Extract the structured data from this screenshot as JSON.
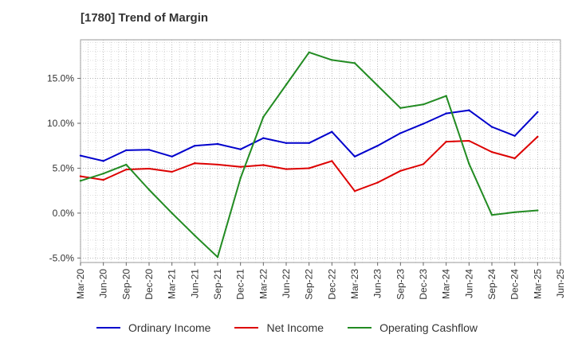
{
  "chart_data": {
    "type": "line",
    "title": "[1780]  Trend of Margin",
    "x": [
      "Mar-20",
      "Jun-20",
      "Sep-20",
      "Dec-20",
      "Mar-21",
      "Jun-21",
      "Sep-21",
      "Dec-21",
      "Mar-22",
      "Jun-22",
      "Sep-22",
      "Dec-22",
      "Mar-23",
      "Jun-23",
      "Sep-23",
      "Dec-23",
      "Mar-24",
      "Jun-24",
      "Sep-24",
      "Dec-24",
      "Mar-25"
    ],
    "x_tick_labels": [
      "Mar-20",
      "Jun-20",
      "Sep-20",
      "Dec-20",
      "Mar-21",
      "Jun-21",
      "Sep-21",
      "Dec-21",
      "Mar-22",
      "Jun-22",
      "Sep-22",
      "Dec-22",
      "Mar-23",
      "Jun-23",
      "Sep-23",
      "Dec-23",
      "Mar-24",
      "Jun-24",
      "Sep-24",
      "Dec-24",
      "Mar-25",
      "Jun-25"
    ],
    "y_tick_labels": [
      "-5.0%",
      "0.0%",
      "5.0%",
      "10.0%",
      "15.0%"
    ],
    "y_ticks": [
      -5,
      0,
      5,
      10,
      15
    ],
    "ylim": [
      -5.5,
      19.3
    ],
    "grid": true,
    "legend_position": "bottom",
    "series": [
      {
        "name": "Ordinary Income",
        "color": "#0000cc",
        "values": [
          6.4,
          5.8,
          7.0,
          7.05,
          6.3,
          7.5,
          7.7,
          7.1,
          8.35,
          7.8,
          7.8,
          9.05,
          6.3,
          7.5,
          8.9,
          9.95,
          11.1,
          11.45,
          9.6,
          8.6,
          11.25
        ]
      },
      {
        "name": "Net Income",
        "color": "#dd0000",
        "values": [
          4.1,
          3.7,
          4.85,
          4.95,
          4.6,
          5.55,
          5.4,
          5.15,
          5.35,
          4.9,
          5.0,
          5.8,
          2.45,
          3.4,
          4.7,
          5.45,
          7.95,
          8.05,
          6.8,
          6.1,
          8.5
        ]
      },
      {
        "name": "Operating Cashflow",
        "color": "#228b22",
        "values": [
          3.6,
          4.4,
          5.4,
          2.6,
          0.0,
          -2.5,
          -4.9,
          3.9,
          10.7,
          14.3,
          17.9,
          17.05,
          16.7,
          14.2,
          11.7,
          12.1,
          13.05,
          5.5,
          -0.2,
          0.1,
          0.3
        ]
      }
    ]
  }
}
